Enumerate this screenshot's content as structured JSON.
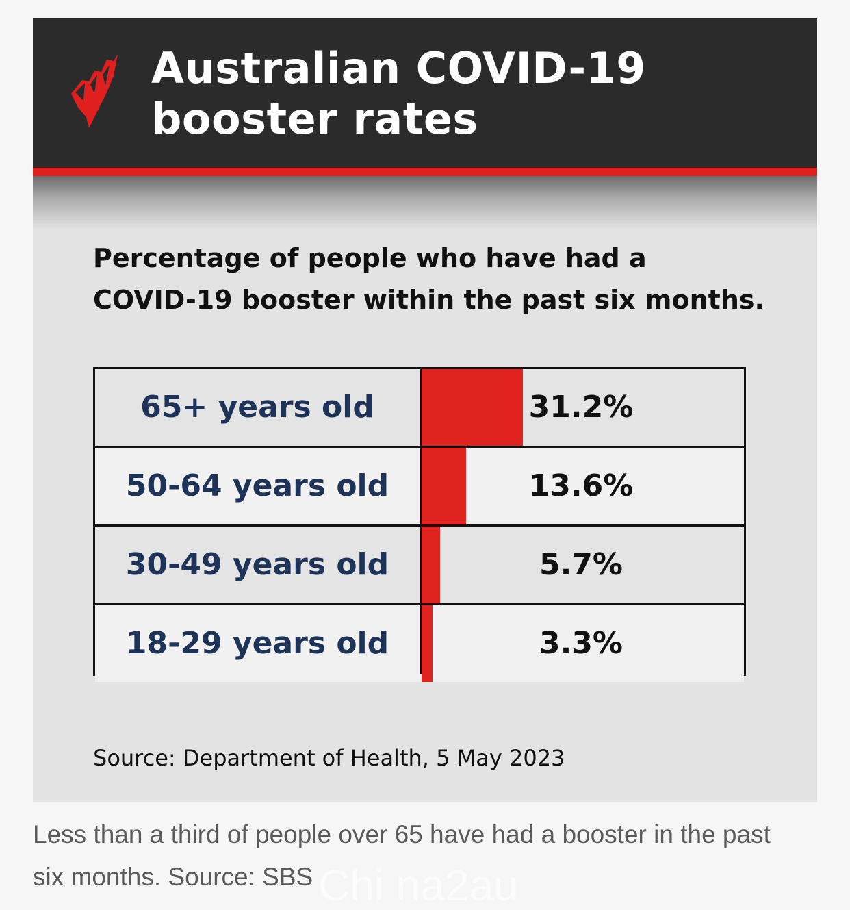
{
  "header": {
    "title_line1": "Australian COVID-19",
    "title_line2": "booster rates",
    "logo_icon": "sbs-logo-icon",
    "accent_color": "#e0201f",
    "background_color": "#2b2b2b"
  },
  "chart_data": {
    "type": "table",
    "subtitle_line1": "Percentage of people who have had a",
    "subtitle_line2": "COVID-19 booster within the past six months.",
    "categories": [
      "65+ years old",
      "50-64 years old",
      "30-49 years old",
      "18-29 years old"
    ],
    "values": [
      31.2,
      13.6,
      5.7,
      3.3
    ],
    "value_labels": [
      "31.2%",
      "13.6%",
      "5.7%",
      "3.3%"
    ],
    "bar_color": "#e0231f",
    "source": "Source: Department of Health, 5 May 2023"
  },
  "caption": {
    "line1": "Less than a third of people over 65 have had a booster in the past",
    "line2": "six months. Source: SBS"
  },
  "watermark": "Chi na2au"
}
